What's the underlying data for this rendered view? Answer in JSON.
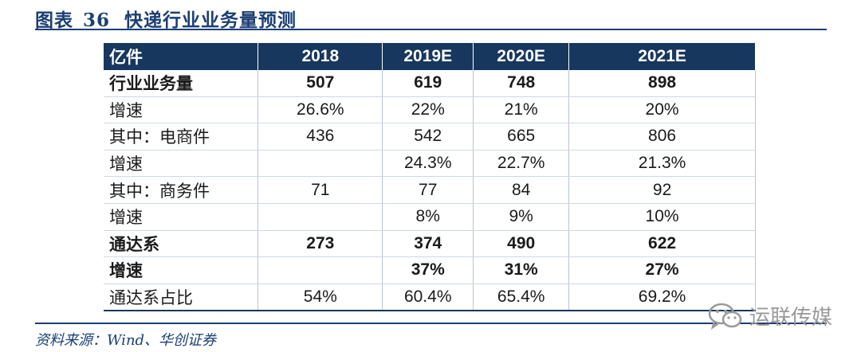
{
  "figure": {
    "label": "图表",
    "number": "36",
    "title": "快递行业业务量预测"
  },
  "table": {
    "headers": [
      "亿件",
      "2018",
      "2019E",
      "2020E",
      "2021E"
    ],
    "rows": [
      {
        "cells": [
          "行业业务量",
          "507",
          "619",
          "748",
          "898"
        ],
        "bold": true
      },
      {
        "cells": [
          "增速",
          "26.6%",
          "22%",
          "21%",
          "20%"
        ],
        "bold": false
      },
      {
        "cells": [
          "其中：电商件",
          "436",
          "542",
          "665",
          "806"
        ],
        "bold": false
      },
      {
        "cells": [
          "增速",
          "",
          "24.3%",
          "22.7%",
          "21.3%"
        ],
        "bold": false
      },
      {
        "cells": [
          "其中：商务件",
          "71",
          "77",
          "84",
          "92"
        ],
        "bold": false
      },
      {
        "cells": [
          "增速",
          "",
          "8%",
          "9%",
          "10%"
        ],
        "bold": false
      },
      {
        "cells": [
          "通达系",
          "273",
          "374",
          "490",
          "622"
        ],
        "bold": true
      },
      {
        "cells": [
          "增速",
          "",
          "37%",
          "31%",
          "27%"
        ],
        "bold": true
      },
      {
        "cells": [
          "通达系占比",
          "54%",
          "60.4%",
          "65.4%",
          "69.2%"
        ],
        "bold": false
      }
    ]
  },
  "source": "资料来源：Wind、华创证券",
  "watermark": {
    "text": "运联传媒",
    "icon": "wechat-icon"
  },
  "colors": {
    "accent": "#1b3f73",
    "header_bg": "#17375e"
  }
}
